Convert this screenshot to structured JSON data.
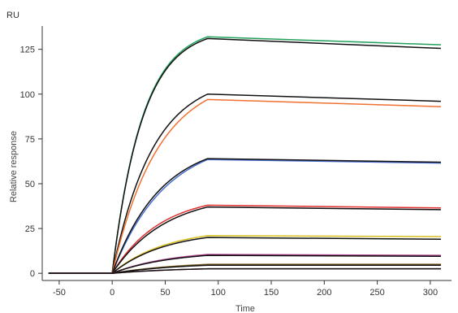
{
  "chart_data": {
    "type": "line",
    "title": "",
    "xlabel": "Time",
    "ylabel": "Relative response",
    "y_unit_label": "RU",
    "xlim": [
      -66,
      320
    ],
    "ylim": [
      -4,
      138
    ],
    "x_ticks": [
      -50,
      0,
      50,
      100,
      150,
      200,
      250,
      300
    ],
    "x_tick_labels": [
      "-50",
      "0",
      "50",
      "100",
      "150",
      "200",
      "250",
      "300"
    ],
    "y_ticks": [
      0,
      25,
      50,
      75,
      100,
      125
    ],
    "y_tick_labels": [
      "0",
      "25",
      "50",
      "75",
      "100",
      "125"
    ],
    "grid": false,
    "legend": "none",
    "association_start": 0,
    "association_end": 90,
    "baseline_start": -60,
    "dissociation_end": 310,
    "series": [
      {
        "color": "#22a05a",
        "plateau": 132,
        "end": 127.5,
        "k": 0.035
      },
      {
        "color": "#111111",
        "plateau": 131,
        "end": 125.5,
        "k": 0.035
      },
      {
        "color": "#111111",
        "plateau": 100,
        "end": 96,
        "k": 0.026
      },
      {
        "color": "#f07030",
        "plateau": 97,
        "end": 93,
        "k": 0.023
      },
      {
        "color": "#4a6fd0",
        "plateau": 63.5,
        "end": 61.5,
        "k": 0.02
      },
      {
        "color": "#111111",
        "plateau": 64,
        "end": 62,
        "k": 0.022
      },
      {
        "color": "#e03030",
        "plateau": 38,
        "end": 36.5,
        "k": 0.022
      },
      {
        "color": "#111111",
        "plateau": 37,
        "end": 35.5,
        "k": 0.02
      },
      {
        "color": "#d8c020",
        "plateau": 21,
        "end": 20.5,
        "k": 0.02
      },
      {
        "color": "#111111",
        "plateau": 20,
        "end": 19,
        "k": 0.02
      },
      {
        "color": "#b04090",
        "plateau": 10.5,
        "end": 10,
        "k": 0.018
      },
      {
        "color": "#111111",
        "plateau": 10,
        "end": 9.5,
        "k": 0.018
      },
      {
        "color": "#806020",
        "plateau": 5,
        "end": 5,
        "k": 0.015
      },
      {
        "color": "#111111",
        "plateau": 4.5,
        "end": 4.5,
        "k": 0.015
      },
      {
        "color": "#d04080",
        "plateau": 2.5,
        "end": 2.5,
        "k": 0.015
      },
      {
        "color": "#111111",
        "plateau": 2.5,
        "end": 2.5,
        "k": 0.015
      }
    ]
  }
}
